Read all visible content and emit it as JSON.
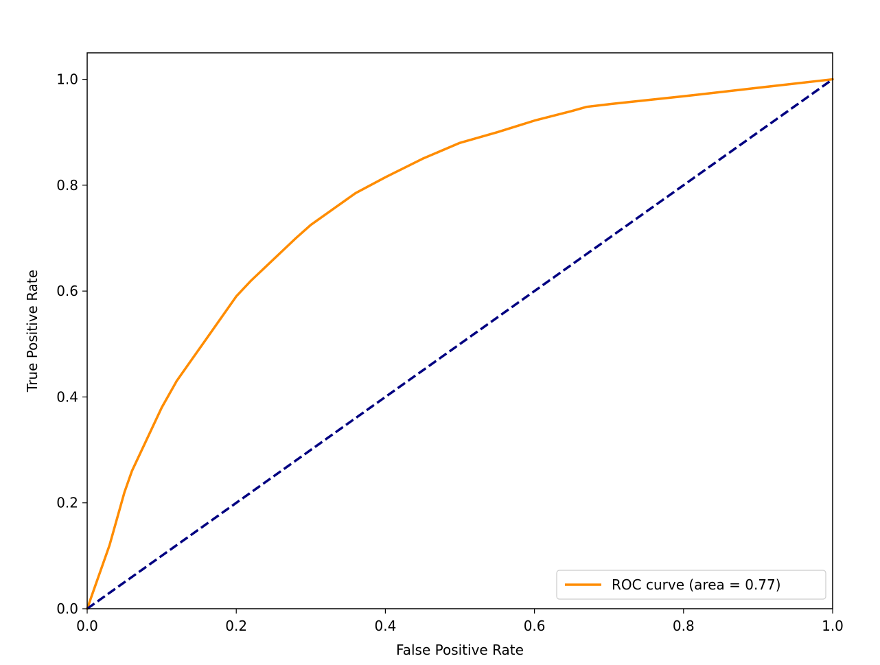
{
  "chart_data": {
    "type": "line",
    "title": "",
    "xlabel": "False Positive Rate",
    "ylabel": "True Positive Rate",
    "xlim": [
      0.0,
      1.0
    ],
    "ylim": [
      0.0,
      1.05
    ],
    "xticks": [
      0.0,
      0.2,
      0.4,
      0.6,
      0.8,
      1.0
    ],
    "yticks": [
      0.0,
      0.2,
      0.4,
      0.6,
      0.8,
      1.0
    ],
    "xtick_labels": [
      "0.0",
      "0.2",
      "0.4",
      "0.6",
      "0.8",
      "1.0"
    ],
    "ytick_labels": [
      "0.0",
      "0.2",
      "0.4",
      "0.6",
      "0.8",
      "1.0"
    ],
    "grid": false,
    "legend_position": "lower-right",
    "series": [
      {
        "name": "ROC curve (area = 0.77)",
        "color": "#ff8c00",
        "line_style": "solid",
        "x": [
          0.0,
          0.005,
          0.01,
          0.015,
          0.02,
          0.03,
          0.04,
          0.05,
          0.06,
          0.07,
          0.08,
          0.09,
          0.1,
          0.12,
          0.14,
          0.16,
          0.18,
          0.2,
          0.22,
          0.25,
          0.28,
          0.3,
          0.33,
          0.36,
          0.4,
          0.45,
          0.5,
          0.55,
          0.6,
          0.65,
          0.67,
          0.7,
          0.8,
          0.9,
          1.0
        ],
        "y": [
          0.0,
          0.02,
          0.04,
          0.06,
          0.08,
          0.12,
          0.17,
          0.22,
          0.26,
          0.29,
          0.32,
          0.35,
          0.38,
          0.43,
          0.47,
          0.51,
          0.55,
          0.59,
          0.62,
          0.66,
          0.7,
          0.725,
          0.755,
          0.785,
          0.815,
          0.85,
          0.88,
          0.9,
          0.922,
          0.94,
          0.948,
          0.953,
          0.968,
          0.984,
          1.0
        ]
      },
      {
        "name": "",
        "color": "#000080",
        "line_style": "dashed",
        "x": [
          0.0,
          1.0
        ],
        "y": [
          0.0,
          1.0
        ]
      }
    ],
    "legend": [
      {
        "label": "ROC curve (area = 0.77)",
        "color": "#ff8c00"
      }
    ]
  }
}
